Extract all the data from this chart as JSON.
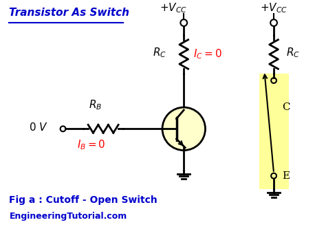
{
  "title": "Transistor As Switch",
  "title_color": "#0000cc",
  "bg_color": "#ffffff",
  "fig_caption": "Fig a : Cutoff - Open Switch",
  "website": "EngineeringTutorial.com",
  "c_label": "C",
  "e_label": "E",
  "zero_v": "0 V"
}
